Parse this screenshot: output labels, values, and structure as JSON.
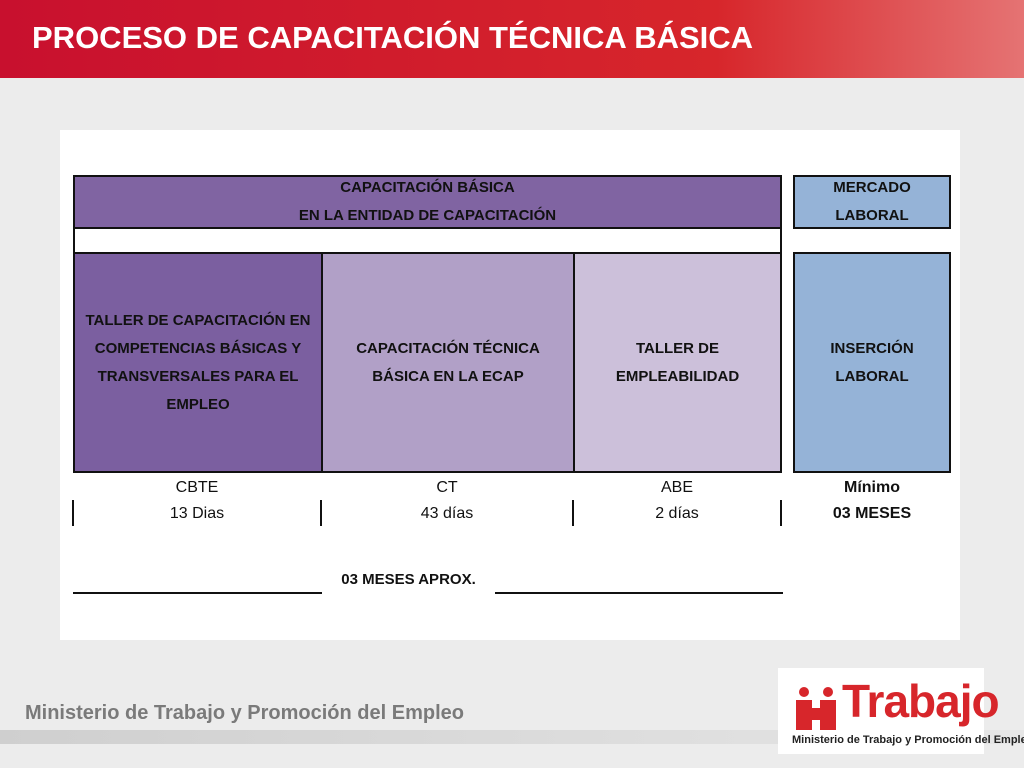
{
  "header": {
    "title": "PROCESO DE CAPACITACIÓN TÉCNICA BÁSICA"
  },
  "table": {
    "top_header": [
      "CAPACITACIÓN BÁSICA",
      "EN LA ENTIDAD DE CAPACITACIÓN"
    ],
    "market_header": [
      "MERCADO",
      "LABORAL"
    ],
    "stages": [
      {
        "text": "TALLER DE CAPACITACIÓN EN COMPETENCIAS BÁSICAS Y TRANSVERSALES PARA EL EMPLEO",
        "code": "CBTE",
        "duration": "13 Dias"
      },
      {
        "text": "CAPACITACIÓN TÉCNICA BÁSICA EN LA ECAP",
        "code": "CT",
        "duration": "43 días"
      },
      {
        "text": "TALLER DE EMPLEABILIDAD",
        "code": "ABE",
        "duration": "2 días"
      }
    ],
    "insertion": {
      "text": "INSERCIÓN LABORAL",
      "code": "Mínimo",
      "duration": "03 MESES"
    },
    "total": "03 MESES APROX."
  },
  "footer": {
    "ministry": "Ministerio de Trabajo y Promoción del Empleo",
    "logo_title": "Trabajo",
    "logo_subtitle": "Ministerio de Trabajo y Promoción del Empleo"
  }
}
